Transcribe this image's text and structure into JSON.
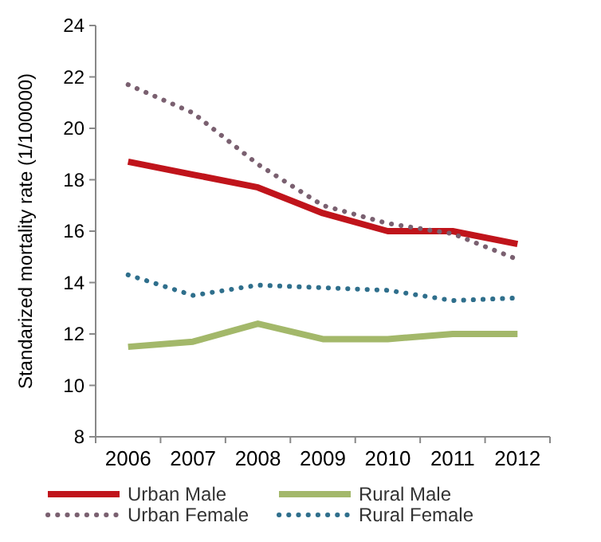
{
  "chart_data": {
    "type": "line",
    "ylabel": "Standarized mortality rate (1/100000)",
    "categories": [
      "2006",
      "2007",
      "2008",
      "2009",
      "2010",
      "2011",
      "2012"
    ],
    "ylim": [
      8,
      24
    ],
    "yticks": [
      8,
      10,
      12,
      14,
      16,
      18,
      20,
      22,
      24
    ],
    "grid": false,
    "legend": "bottom",
    "series": [
      {
        "name": "Urban Male",
        "color": "#c0141b",
        "line_style": "solid",
        "values": [
          18.7,
          18.2,
          17.7,
          16.7,
          16.0,
          16.0,
          15.5
        ]
      },
      {
        "name": "Urban Female",
        "color": "#7a6070",
        "line_style": "dotted",
        "values": [
          21.7,
          20.6,
          18.6,
          17.0,
          16.3,
          15.9,
          14.9
        ]
      },
      {
        "name": "Rural Male",
        "color": "#a3b86a",
        "line_style": "solid",
        "values": [
          11.5,
          11.7,
          12.4,
          11.8,
          11.8,
          12.0,
          12.0
        ]
      },
      {
        "name": "Rural Female",
        "color": "#2f6f8c",
        "line_style": "dotted",
        "values": [
          14.3,
          13.5,
          13.9,
          13.8,
          13.7,
          13.3,
          13.4
        ]
      }
    ]
  }
}
